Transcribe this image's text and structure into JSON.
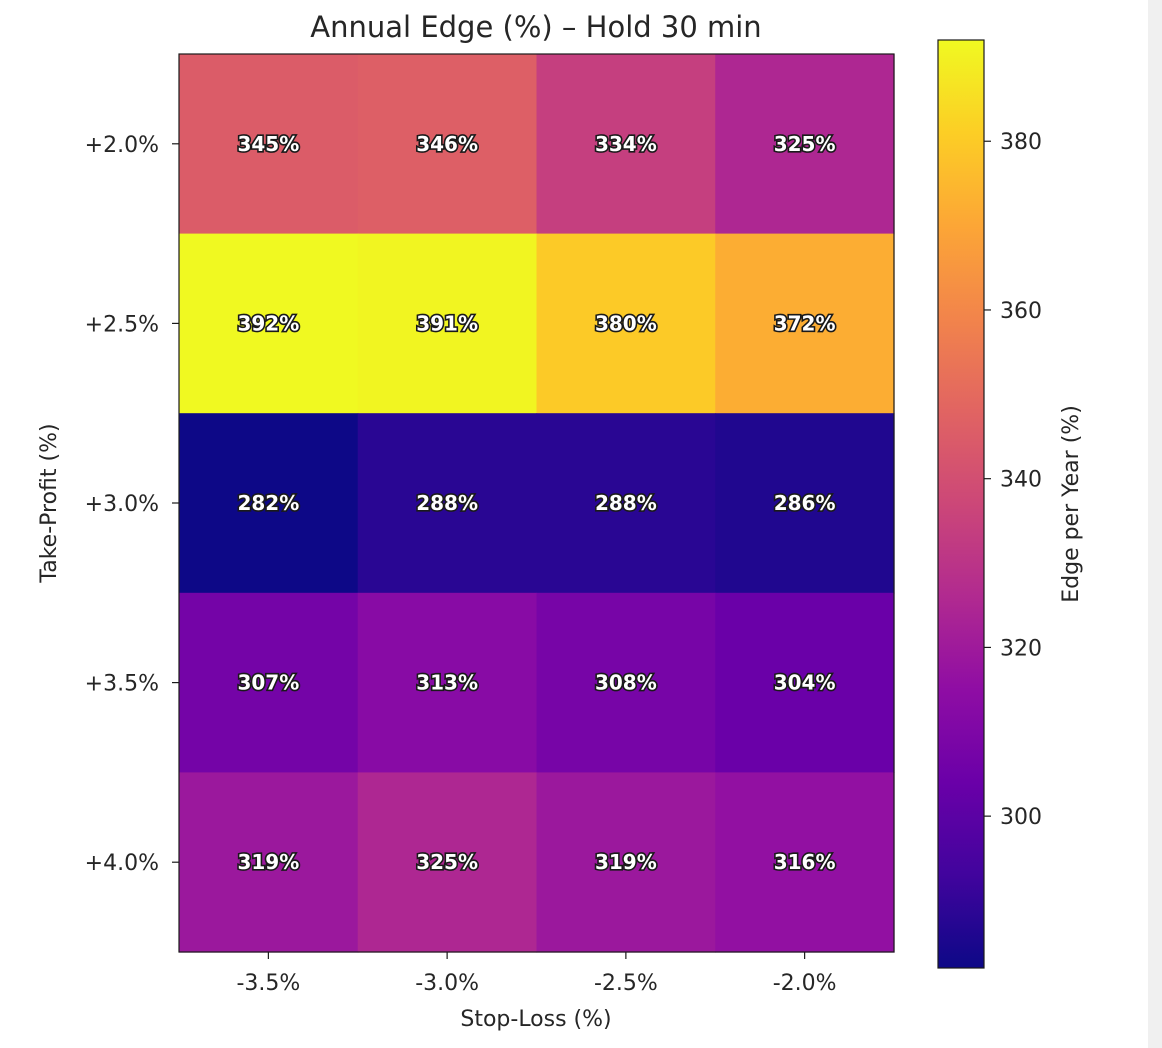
{
  "chart_data": {
    "type": "heatmap",
    "title": "Annual Edge (%) – Hold 30 min",
    "xlabel": "Stop-Loss (%)",
    "ylabel": "Take-Profit (%)",
    "x_categories": [
      "-3.5%",
      "-3.0%",
      "-2.5%",
      "-2.0%"
    ],
    "y_categories": [
      "+2.0%",
      "+2.5%",
      "+3.0%",
      "+3.5%",
      "+4.0%"
    ],
    "values": [
      [
        345,
        346,
        334,
        325
      ],
      [
        392,
        391,
        380,
        372
      ],
      [
        282,
        288,
        288,
        286
      ],
      [
        307,
        313,
        308,
        304
      ],
      [
        319,
        325,
        319,
        316
      ]
    ],
    "value_format": "{v}%",
    "colormap": "plasma",
    "vmin": 282,
    "vmax": 392,
    "colorbar": {
      "label": "Edge per Year (%)",
      "ticks": [
        300,
        320,
        340,
        360,
        380
      ]
    },
    "grid": false
  }
}
